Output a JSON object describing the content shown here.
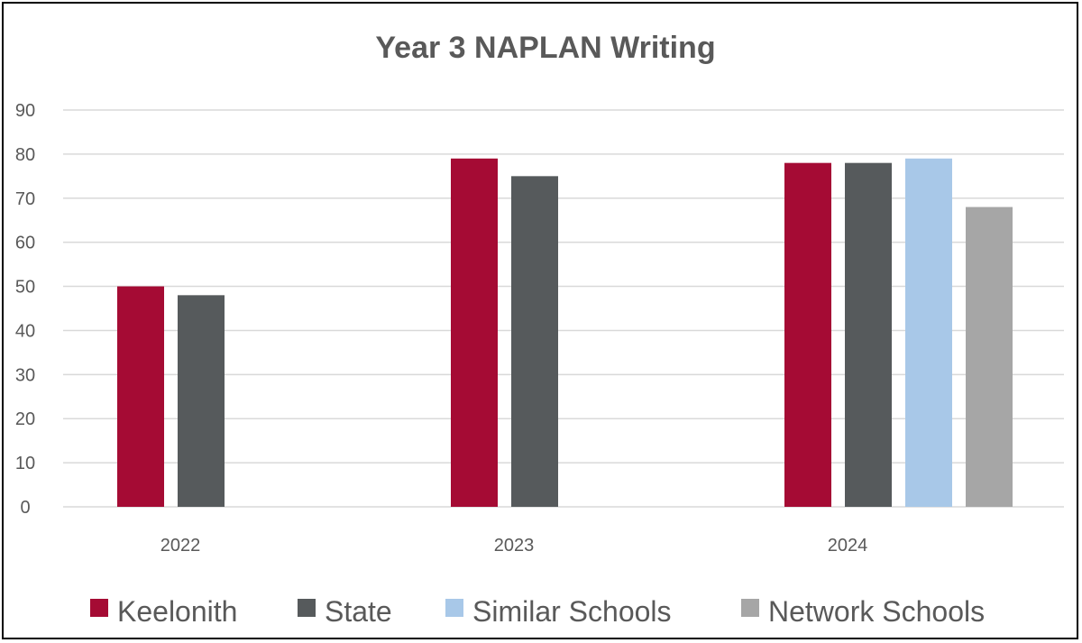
{
  "chart_data": {
    "type": "bar",
    "title": "Year 3 NAPLAN Writing",
    "xlabel": "",
    "ylabel": "",
    "ylim": [
      0,
      90
    ],
    "yticks": [
      0,
      10,
      20,
      30,
      40,
      50,
      60,
      70,
      80,
      90
    ],
    "categories": [
      "2022",
      "2023",
      "2024"
    ],
    "grid": true,
    "legend_position": "bottom",
    "series": [
      {
        "name": "Keelonith",
        "color": "#a50b34",
        "values": [
          50,
          79,
          78
        ]
      },
      {
        "name": "State",
        "color": "#565a5c",
        "values": [
          48,
          75,
          78
        ]
      },
      {
        "name": "Similar Schools",
        "color": "#a8c8e8",
        "values": [
          null,
          null,
          79
        ]
      },
      {
        "name": "Network Schools",
        "color": "#a6a6a6",
        "values": [
          null,
          null,
          68
        ]
      }
    ]
  }
}
